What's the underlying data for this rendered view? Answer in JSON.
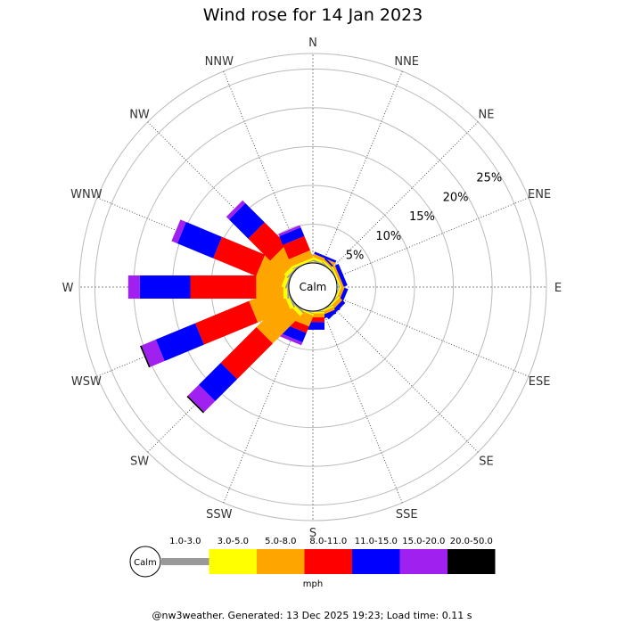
{
  "chart_data": {
    "type": "wind-rose",
    "title": "Wind rose for 14 Jan 2023",
    "directions": [
      "N",
      "NNE",
      "NE",
      "ENE",
      "E",
      "ESE",
      "SE",
      "SSE",
      "S",
      "SSW",
      "SW",
      "WSW",
      "W",
      "WNW",
      "NW",
      "NNW"
    ],
    "ring_labels": [
      "5%",
      "10%",
      "15%",
      "20%",
      "25%"
    ],
    "ring_values": [
      5,
      10,
      15,
      20,
      25
    ],
    "r_max": 27,
    "speed_bins": [
      {
        "label": "1.0-3.0",
        "color": "#999999"
      },
      {
        "label": "3.0-5.0",
        "color": "#ffff00"
      },
      {
        "label": "5.0-8.0",
        "color": "#ffa500"
      },
      {
        "label": "8.0-11.0",
        "color": "#ff0000"
      },
      {
        "label": "11.0-15.0",
        "color": "#0000ff"
      },
      {
        "label": "15.0-20.0",
        "color": "#a020f0"
      },
      {
        "label": "20.0-50.0",
        "color": "#000000"
      }
    ],
    "frequencies": {
      "N": [
        0.1,
        0.2,
        0.3,
        0.0,
        0.0,
        0.0,
        0.0
      ],
      "NNE": [
        0.2,
        0.3,
        0.4,
        0.0,
        0.3,
        0.0,
        0.0
      ],
      "NE": [
        0.1,
        0.2,
        0.2,
        0.0,
        0.2,
        0.0,
        0.0
      ],
      "ENE": [
        0.1,
        0.2,
        0.3,
        0.0,
        0.5,
        0.0,
        0.0
      ],
      "E": [
        0.0,
        0.0,
        0.0,
        0.0,
        0.0,
        0.0,
        0.0
      ],
      "ESE": [
        0.1,
        0.2,
        0.4,
        0.0,
        0.5,
        0.0,
        0.0
      ],
      "SE": [
        0.1,
        0.2,
        0.5,
        0.0,
        0.5,
        0.0,
        0.0
      ],
      "SSE": [
        0.1,
        0.2,
        0.4,
        0.0,
        0.5,
        0.0,
        0.0
      ],
      "S": [
        0.1,
        0.2,
        0.5,
        0.6,
        1.0,
        0.0,
        0.0
      ],
      "SSW": [
        0.1,
        0.2,
        1.5,
        0.9,
        1.3,
        0.4,
        0.0
      ],
      "SW": [
        0.2,
        0.5,
        5.0,
        6.5,
        4.0,
        2.0,
        0.2
      ],
      "WSW": [
        0.2,
        0.5,
        4.5,
        7.5,
        5.5,
        2.0,
        0.2
      ],
      "W": [
        0.2,
        0.5,
        3.5,
        8.5,
        6.5,
        1.5,
        0.0
      ],
      "WNW": [
        0.2,
        0.5,
        3.5,
        6.0,
        5.0,
        0.8,
        0.0
      ],
      "NW": [
        0.2,
        0.5,
        2.5,
        4.0,
        3.5,
        0.5,
        0.0
      ],
      "NNW": [
        0.1,
        0.3,
        1.0,
        2.0,
        1.2,
        0.3,
        0.0
      ]
    },
    "calm_label": "Calm",
    "legend_unit": "mph",
    "grid": true
  },
  "footer": "@nw3weather. Generated: 13 Dec 2025 19:23; Load time: 0.11 s"
}
